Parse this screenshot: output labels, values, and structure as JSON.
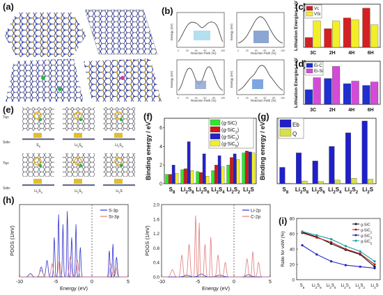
{
  "panels": {
    "a": "(a)",
    "b": "(b)",
    "c": "(c)",
    "d": "(d)",
    "e": "(e)",
    "f": "(f)",
    "g": "(g)",
    "h": "(h)",
    "i": "(i)"
  },
  "b_plots": {
    "xlabel": "Reaction Path (%)",
    "ylabel": "Energy (eV)",
    "xticks": [
      "0",
      "20",
      "40",
      "60",
      "80",
      "100"
    ]
  },
  "e_labels": {
    "top": "Top:",
    "side": "Side:",
    "row1": [
      "S8",
      "Li2S8",
      "Li2S6"
    ],
    "row2": [
      "Li2S4",
      "Li2S2",
      "Li2S"
    ]
  },
  "chart_data": [
    {
      "id": "c",
      "type": "bar",
      "categories": [
        "3C",
        "2H",
        "4H",
        "6H"
      ],
      "ylabel": "Lithiation Energies / eV",
      "series": [
        {
          "name": "Vc",
          "color": "#d42020",
          "values": [
            1.0,
            1.9,
            3.0,
            4.0
          ]
        },
        {
          "name": "VSi",
          "color": "#f2ee2a",
          "values": [
            2.7,
            2.7,
            2.8,
            2.3
          ]
        }
      ],
      "ylim": [
        0,
        4.4
      ],
      "legend": "top-left"
    },
    {
      "id": "d",
      "type": "bar",
      "categories": [
        "3C",
        "2H",
        "4H",
        "6H"
      ],
      "ylabel": "Lithiation Energies / eV",
      "series": [
        {
          "name": "Ei-C",
          "color": "#1f2fd0",
          "values": [
            1.7,
            3.0,
            2.4,
            2.2
          ]
        },
        {
          "name": "Ei-Si",
          "color": "#d34bd6",
          "values": [
            3.1,
            4.4,
            2.7,
            2.6
          ]
        }
      ],
      "ylim": [
        0,
        5
      ],
      "legend": "top-left"
    },
    {
      "id": "f",
      "type": "bar",
      "categories": [
        "S8",
        "Li2S8",
        "Li2S6",
        "Li2S4",
        "Li2S2",
        "Li2S"
      ],
      "ylabel": "Binding energy / eV",
      "yticks": [
        "0",
        "2",
        "4",
        "6"
      ],
      "ylim": [
        0,
        7
      ],
      "series": [
        {
          "name": "(g-SiC)",
          "color": "#2ee82e",
          "values": [
            1.0,
            1.5,
            1.3,
            1.4,
            2.0,
            3.3
          ]
        },
        {
          "name": "(g-SiC2)",
          "color": "#d01818",
          "values": [
            1.0,
            1.6,
            1.2,
            2.0,
            2.8,
            3.5
          ]
        },
        {
          "name": "(g-SiC3)",
          "color": "#2323c8",
          "values": [
            2.0,
            4.5,
            3.2,
            3.0,
            3.2,
            3.4
          ]
        },
        {
          "name": "(g-SiC5)",
          "color": "#f0f028",
          "values": [
            1.1,
            1.4,
            0.8,
            1.8,
            2.6,
            3.3
          ]
        }
      ],
      "legend": "top-right"
    },
    {
      "id": "g",
      "type": "bar",
      "categories": [
        "S8",
        "Li2S8",
        "Li2S6",
        "Li2S4",
        "Li2S2",
        "Li2S"
      ],
      "ylabel": "Binding energy / eV",
      "ylim": [
        0,
        3.6
      ],
      "series": [
        {
          "name": "Eb",
          "color": "#2020c8",
          "values": [
            0.9,
            1.7,
            1.25,
            2.05,
            2.8,
            3.45
          ]
        },
        {
          "name": "Q",
          "color": "#d8e04a",
          "values": [
            0.03,
            0.15,
            0.12,
            0.2,
            0.3,
            0.25
          ]
        }
      ],
      "legend": "top-left"
    },
    {
      "id": "h1",
      "type": "line",
      "xlabel": "Energy (eV)",
      "ylabel": "PDOS (1/eV)",
      "xticks": [
        "-10",
        "-5",
        "0",
        "5"
      ],
      "series": [
        {
          "name": "S-3p",
          "color": "#3030d0"
        },
        {
          "name": "Si-3p",
          "color": "#e07a7a"
        }
      ],
      "legend": "top-right"
    },
    {
      "id": "h2",
      "type": "line",
      "xlabel": "Energy (eV)",
      "ylabel": "PDOS (1/eV)",
      "xticks": [
        "-10",
        "-5",
        "0",
        "5"
      ],
      "yticks": [
        "0.0",
        "0.4",
        "0.8",
        "1.2",
        "1.6",
        "2.0"
      ],
      "series": [
        {
          "name": "Li-2p",
          "color": "#3030d0"
        },
        {
          "name": "C-2p",
          "color": "#e07a7a"
        }
      ],
      "legend": "top-right"
    },
    {
      "id": "i",
      "type": "line",
      "ylabel": "Ratio for vdW (%)",
      "categories": [
        "S8",
        "Li2S8",
        "Li2S6",
        "Li2S4",
        "Li2S2",
        "Li2S"
      ],
      "yticks": [
        "0",
        "20",
        "40",
        "60",
        "80"
      ],
      "ylim": [
        0,
        80
      ],
      "series": [
        {
          "name": "g-SiC",
          "color": "#111111",
          "values": [
            62,
            56,
            47,
            39,
            33,
            17
          ]
        },
        {
          "name": "g-SiC2",
          "color": "#c01818",
          "values": [
            61,
            55,
            49,
            40,
            34,
            20
          ]
        },
        {
          "name": "g-SiC3",
          "color": "#2020c0",
          "values": [
            45,
            33,
            24,
            19,
            17,
            15
          ]
        },
        {
          "name": "g-SiC5",
          "color": "#18a0a8",
          "values": [
            63,
            58,
            53,
            44,
            37,
            24
          ]
        }
      ],
      "legend": "top-right"
    }
  ]
}
